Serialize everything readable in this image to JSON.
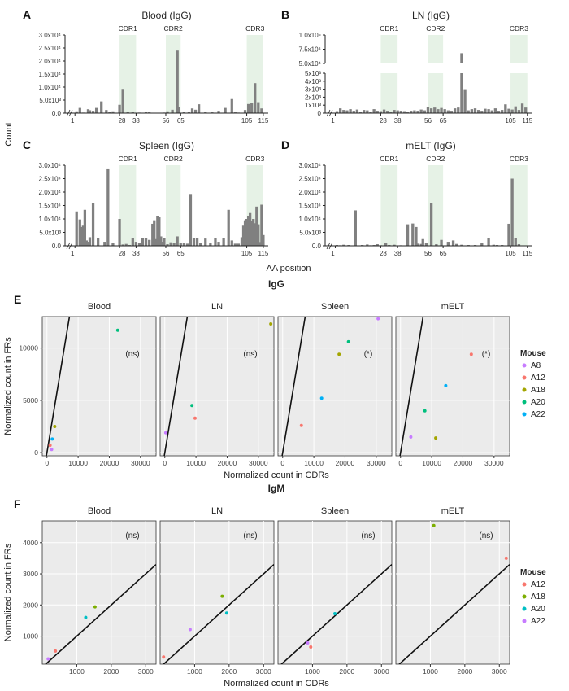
{
  "bar_panels": [
    {
      "letter": "A",
      "title": "Blood (IgG)"
    },
    {
      "letter": "B",
      "title": "LN (IgG)"
    },
    {
      "letter": "C",
      "title": "Spleen (IgG)"
    },
    {
      "letter": "D",
      "title": "mELT (IgG)"
    }
  ],
  "bar_y_ticks": [
    "0.0",
    "5.0x10³",
    "1.0x10⁴",
    "1.5x10⁴",
    "2.0x10⁴",
    "2.5x10⁴",
    "3.0x10⁴"
  ],
  "ln_upper_ticks": [
    "5.0x10⁴",
    "7.5x10⁴",
    "1.0x10⁵"
  ],
  "ln_lower_ticks": [
    "0",
    "1x10³",
    "2x10³",
    "3x10³",
    "4x10³",
    "5x10³"
  ],
  "x_ticks": [
    "1",
    "28",
    "38",
    "56",
    "65",
    "105",
    "115"
  ],
  "cdr_labels": [
    "CDR1",
    "CDR2",
    "CDR3"
  ],
  "bar_ylabel": "Count",
  "bar_xlabel": "AA position",
  "scatter_groups": [
    {
      "letter": "E",
      "title": "IgG"
    },
    {
      "letter": "F",
      "title": "IgM"
    }
  ],
  "scatter_panels": [
    "Blood",
    "LN",
    "Spleen",
    "mELT"
  ],
  "igg_x_ticks": [
    "0",
    "10000",
    "20000",
    "30000"
  ],
  "igg_y_ticks": [
    "0",
    "5000",
    "10000"
  ],
  "igm_x_ticks": [
    "1000",
    "2000",
    "3000"
  ],
  "igm_y_ticks": [
    "1000",
    "2000",
    "3000",
    "4000"
  ],
  "scatter_xlabel": "Normalized count in CDRs",
  "scatter_ylabel": "Normalized count in FRs",
  "legend_title": "Mouse",
  "igg_legend": [
    {
      "name": "A8",
      "color": "#C77CFF"
    },
    {
      "name": "A12",
      "color": "#F8766D"
    },
    {
      "name": "A18",
      "color": "#A3A500"
    },
    {
      "name": "A20",
      "color": "#00BF7D"
    },
    {
      "name": "A22",
      "color": "#00B0F6"
    }
  ],
  "igm_legend": [
    {
      "name": "A12",
      "color": "#F8766D"
    },
    {
      "name": "A18",
      "color": "#7CAE00"
    },
    {
      "name": "A20",
      "color": "#00BFC4"
    },
    {
      "name": "A22",
      "color": "#C77CFF"
    }
  ],
  "igg_annotations": [
    "(ns)",
    "(ns)",
    "(*)",
    "(*)"
  ],
  "igm_annotations": [
    "(ns)",
    "(ns)",
    "(ns)",
    "(ns)"
  ],
  "chart_data": [
    {
      "type": "bar",
      "title": "Blood (IgG)",
      "xlabel": "AA position",
      "ylabel": "Count",
      "ylim": [
        0,
        30000
      ],
      "x": [
        2,
        4,
        6,
        9,
        10,
        12,
        14,
        17,
        20,
        22,
        24,
        28,
        30,
        33,
        36,
        40,
        42,
        44,
        46,
        50,
        52,
        55,
        57,
        60,
        63,
        64,
        67,
        70,
        72,
        74,
        76,
        80,
        84,
        88,
        92,
        96,
        98,
        100,
        104,
        106,
        108,
        110,
        112,
        114
      ],
      "values": [
        700,
        2000,
        200,
        1500,
        1100,
        900,
        2000,
        4500,
        1200,
        500,
        700,
        3200,
        9300,
        600,
        300,
        200,
        100,
        400,
        300,
        150,
        100,
        200,
        700,
        1300,
        24000,
        2500,
        600,
        400,
        1800,
        1300,
        3400,
        400,
        300,
        900,
        2000,
        5400,
        300,
        200,
        1200,
        3500,
        3800,
        11500,
        4200,
        1800
      ]
    },
    {
      "type": "bar",
      "title": "LN (IgG)",
      "xlabel": "AA position",
      "ylabel": "Count",
      "ylim": [
        0,
        100000
      ],
      "x": [
        2,
        4,
        6,
        8,
        10,
        12,
        14,
        16,
        18,
        20,
        22,
        24,
        26,
        28,
        30,
        32,
        34,
        36,
        38,
        40,
        42,
        44,
        46,
        48,
        50,
        52,
        54,
        56,
        58,
        60,
        62,
        64,
        66,
        68,
        70,
        72,
        74,
        76,
        78,
        80,
        82,
        84,
        86,
        88,
        90,
        92,
        94,
        96,
        98,
        100,
        102,
        104,
        106,
        108,
        110,
        112,
        114
      ],
      "values": [
        250,
        600,
        400,
        350,
        500,
        300,
        450,
        200,
        400,
        350,
        150,
        500,
        300,
        250,
        450,
        300,
        200,
        400,
        350,
        300,
        250,
        200,
        300,
        350,
        300,
        450,
        350,
        800,
        600,
        700,
        500,
        650,
        500,
        350,
        300,
        600,
        700,
        68000,
        3000,
        350,
        500,
        600,
        400,
        300,
        550,
        500,
        350,
        600,
        300,
        400,
        1100,
        550,
        450,
        850,
        400,
        1200,
        700
      ]
    },
    {
      "type": "bar",
      "title": "Spleen (IgG)",
      "xlabel": "AA position",
      "ylabel": "Count",
      "ylim": [
        0,
        30000
      ],
      "x": [
        2,
        4,
        5,
        6,
        7,
        8,
        9,
        10,
        12,
        15,
        19,
        21,
        24,
        28,
        30,
        32,
        34,
        36,
        38,
        40,
        42,
        44,
        46,
        48,
        49,
        50,
        51,
        52,
        53,
        54,
        55,
        57,
        59,
        61,
        63,
        65,
        67,
        69,
        71,
        73,
        75,
        77,
        80,
        83,
        86,
        88,
        91,
        94,
        96,
        98,
        100,
        102,
        103,
        104,
        105,
        106,
        107,
        108,
        109,
        110,
        111,
        112,
        113,
        114,
        115
      ],
      "values": [
        12800,
        9800,
        7000,
        7500,
        13400,
        2000,
        1500,
        3200,
        16000,
        3000,
        1500,
        28500,
        1000,
        10000,
        500,
        700,
        300,
        3000,
        1500,
        1000,
        2800,
        3000,
        2200,
        8200,
        9500,
        2500,
        11000,
        10600,
        3500,
        1500,
        2800,
        600,
        1300,
        1000,
        3500,
        1000,
        1200,
        800,
        19300,
        2800,
        3000,
        1200,
        2700,
        1000,
        2800,
        1500,
        3000,
        13400,
        2000,
        800,
        800,
        3200,
        7500,
        9500,
        10000,
        11200,
        12200,
        9200,
        10000,
        8400,
        14600,
        8000,
        1400,
        15300,
        4000
      ]
    },
    {
      "type": "bar",
      "title": "mELT (IgG)",
      "xlabel": "AA position",
      "ylabel": "Count",
      "ylim": [
        0,
        30000
      ],
      "x": [
        2,
        4,
        6,
        9,
        13,
        17,
        20,
        22,
        24,
        26,
        28,
        31,
        33,
        36,
        40,
        44,
        47,
        49,
        50,
        52,
        53,
        55,
        58,
        61,
        64,
        68,
        71,
        73,
        76,
        80,
        84,
        88,
        92,
        95,
        97,
        100,
        104,
        106,
        108,
        110
      ],
      "values": [
        300,
        200,
        400,
        300,
        13200,
        300,
        500,
        200,
        300,
        600,
        200,
        1000,
        300,
        400,
        200,
        8000,
        8300,
        7000,
        800,
        700,
        2500,
        1000,
        16000,
        600,
        2200,
        1500,
        2000,
        700,
        400,
        300,
        300,
        1200,
        3000,
        400,
        300,
        300,
        8200,
        25000,
        3000,
        600
      ]
    },
    {
      "type": "scatter",
      "title": "IgG Blood",
      "xlabel": "Normalized count in CDRs",
      "ylabel": "Normalized count in FRs",
      "xlim": [
        -1500,
        35000
      ],
      "ylim": [
        -300,
        13000
      ],
      "series": [
        {
          "name": "A8",
          "x": [
            1500
          ],
          "y": [
            300
          ]
        },
        {
          "name": "A12",
          "x": [
            1000
          ],
          "y": [
            700
          ]
        },
        {
          "name": "A18",
          "x": [
            2500
          ],
          "y": [
            2500
          ]
        },
        {
          "name": "A20",
          "x": [
            22700
          ],
          "y": [
            11700
          ]
        },
        {
          "name": "A22",
          "x": [
            1700
          ],
          "y": [
            1300
          ]
        }
      ]
    },
    {
      "type": "scatter",
      "title": "IgG LN",
      "xlabel": "Normalized count in CDRs",
      "ylabel": "Normalized count in FRs",
      "xlim": [
        -1500,
        35000
      ],
      "ylim": [
        -300,
        13000
      ],
      "series": [
        {
          "name": "A8",
          "x": [
            300
          ],
          "y": [
            1900
          ]
        },
        {
          "name": "A12",
          "x": [
            9700
          ],
          "y": [
            3300
          ]
        },
        {
          "name": "A18",
          "x": [
            34000
          ],
          "y": [
            12300
          ]
        },
        {
          "name": "A20",
          "x": [
            8700
          ],
          "y": [
            4500
          ]
        }
      ]
    },
    {
      "type": "scatter",
      "title": "IgG Spleen",
      "xlabel": "Normalized count in CDRs",
      "ylabel": "Normalized count in FRs",
      "xlim": [
        -1500,
        35000
      ],
      "ylim": [
        -300,
        13000
      ],
      "series": [
        {
          "name": "A8",
          "x": [
            30600
          ],
          "y": [
            12800
          ]
        },
        {
          "name": "A12",
          "x": [
            6000
          ],
          "y": [
            2600
          ]
        },
        {
          "name": "A18",
          "x": [
            18100
          ],
          "y": [
            9400
          ]
        },
        {
          "name": "A20",
          "x": [
            21100
          ],
          "y": [
            10600
          ]
        },
        {
          "name": "A22",
          "x": [
            12500
          ],
          "y": [
            5200
          ]
        }
      ]
    },
    {
      "type": "scatter",
      "title": "IgG mELT",
      "xlabel": "Normalized count in CDRs",
      "ylabel": "Normalized count in FRs",
      "xlim": [
        -1500,
        35000
      ],
      "ylim": [
        -300,
        13000
      ],
      "series": [
        {
          "name": "A12",
          "x": [
            22700
          ],
          "y": [
            9400
          ]
        },
        {
          "name": "A8",
          "x": [
            3300
          ],
          "y": [
            1500
          ]
        },
        {
          "name": "A18",
          "x": [
            11300
          ],
          "y": [
            1400
          ]
        },
        {
          "name": "A20",
          "x": [
            7800
          ],
          "y": [
            4000
          ]
        },
        {
          "name": "A22",
          "x": [
            14500
          ],
          "y": [
            6400
          ]
        }
      ]
    },
    {
      "type": "scatter",
      "title": "IgM Blood",
      "xlabel": "Normalized count in CDRs",
      "ylabel": "Normalized count in FRs",
      "xlim": [
        0,
        3300
      ],
      "ylim": [
        100,
        4700
      ],
      "series": [
        {
          "name": "A12",
          "x": [
            380
          ],
          "y": [
            520
          ]
        },
        {
          "name": "A18",
          "x": [
            1530
          ],
          "y": [
            1940
          ]
        },
        {
          "name": "A20",
          "x": [
            1260
          ],
          "y": [
            1600
          ]
        },
        {
          "name": "A22",
          "x": [
            170
          ],
          "y": [
            270
          ]
        }
      ]
    },
    {
      "type": "scatter",
      "title": "IgM LN",
      "xlabel": "Normalized count in CDRs",
      "ylabel": "Normalized count in FRs",
      "xlim": [
        0,
        3300
      ],
      "ylim": [
        100,
        4700
      ],
      "series": [
        {
          "name": "A12",
          "x": [
            100
          ],
          "y": [
            330
          ]
        },
        {
          "name": "A18",
          "x": [
            1800
          ],
          "y": [
            2280
          ]
        },
        {
          "name": "A20",
          "x": [
            1930
          ],
          "y": [
            1740
          ]
        },
        {
          "name": "A22",
          "x": [
            870
          ],
          "y": [
            1210
          ]
        }
      ]
    },
    {
      "type": "scatter",
      "title": "IgM Spleen",
      "xlabel": "Normalized count in CDRs",
      "ylabel": "Normalized count in FRs",
      "xlim": [
        0,
        3300
      ],
      "ylim": [
        100,
        4700
      ],
      "series": [
        {
          "name": "A12",
          "x": [
            950
          ],
          "y": [
            650
          ]
        },
        {
          "name": "A20",
          "x": [
            1650
          ],
          "y": [
            1720
          ]
        },
        {
          "name": "A22",
          "x": [
            860
          ],
          "y": [
            780
          ]
        }
      ]
    },
    {
      "type": "scatter",
      "title": "IgM mELT",
      "xlabel": "Normalized count in CDRs",
      "ylabel": "Normalized count in FRs",
      "xlim": [
        0,
        3300
      ],
      "ylim": [
        100,
        4700
      ],
      "series": [
        {
          "name": "A12",
          "x": [
            3200
          ],
          "y": [
            3500
          ]
        },
        {
          "name": "A18",
          "x": [
            1100
          ],
          "y": [
            4550
          ]
        }
      ]
    }
  ]
}
